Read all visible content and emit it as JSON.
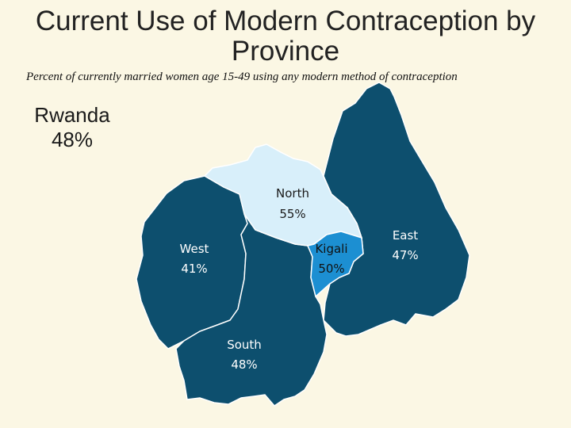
{
  "title": "Current Use of Modern Contraception by Province",
  "subtitle": "Percent of currently married women age 15-49 using any modern method of contraception",
  "national": {
    "name": "Rwanda",
    "value": "48%"
  },
  "colors": {
    "background": "#fbf7e4",
    "dark_province": "#0d4f6e",
    "north": "#d8effa",
    "kigali": "#1c8fd2",
    "border": "#ffffff"
  },
  "provinces": [
    {
      "name": "North",
      "value": "55%"
    },
    {
      "name": "East",
      "value": "47%"
    },
    {
      "name": "West",
      "value": "41%"
    },
    {
      "name": "Kigali",
      "value": "50%"
    },
    {
      "name": "South",
      "value": "48%"
    }
  ]
}
